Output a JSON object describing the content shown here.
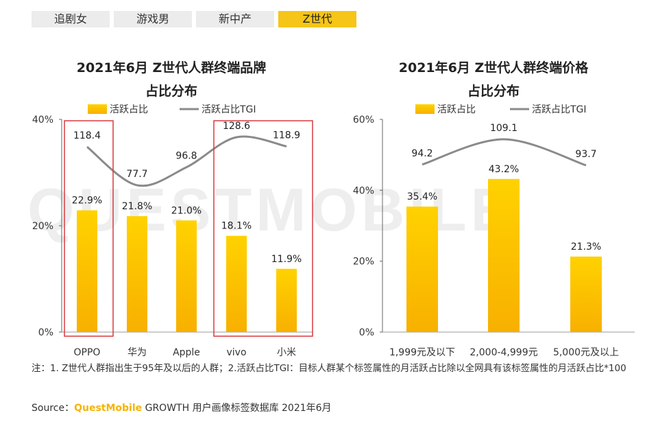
{
  "tabs": [
    {
      "label": "追剧女",
      "active": false
    },
    {
      "label": "游戏男",
      "active": false
    },
    {
      "label": "新中产",
      "active": false
    },
    {
      "label": "Z世代",
      "active": true
    }
  ],
  "watermark": "QUESTMOBILE",
  "colors": {
    "bar_top": "#ffd200",
    "bar_bottom": "#f8b000",
    "line": "#8a8a8a",
    "highlight": "#d9393e",
    "tab_active": "#f5c518"
  },
  "chart_data": [
    {
      "type": "bar",
      "title_line1": "2021年6月 Z世代人群终端品牌",
      "title_line2": "占比分布",
      "legend": {
        "bar": "活跃占比",
        "line": "活跃占比TGI"
      },
      "categories": [
        "OPPO",
        "华为",
        "Apple",
        "vivo",
        "小米"
      ],
      "values": [
        22.9,
        21.8,
        21.0,
        18.1,
        11.9
      ],
      "value_labels": [
        "22.9%",
        "21.8%",
        "21.0%",
        "18.1%",
        "11.9%"
      ],
      "tgi": [
        118.4,
        77.7,
        96.8,
        128.6,
        118.9
      ],
      "tgi_labels": [
        "118.4",
        "77.7",
        "96.8",
        "128.6",
        "118.9"
      ],
      "ylim": [
        0,
        40
      ],
      "yticks": [
        "0%",
        "20%",
        "40%"
      ],
      "highlight_groups": [
        [
          0
        ],
        [
          3,
          4
        ]
      ]
    },
    {
      "type": "bar",
      "title_line1": "2021年6月 Z世代人群终端价格",
      "title_line2": "占比分布",
      "legend": {
        "bar": "活跃占比",
        "line": "活跃占比TGI"
      },
      "categories": [
        "1,999元及以下",
        "2,000-4,999元",
        "5,000元及以上"
      ],
      "values": [
        35.4,
        43.2,
        21.3
      ],
      "value_labels": [
        "35.4%",
        "43.2%",
        "21.3%"
      ],
      "tgi": [
        94.2,
        109.1,
        93.7
      ],
      "tgi_labels": [
        "94.2",
        "109.1",
        "93.7"
      ],
      "ylim": [
        0,
        60
      ],
      "yticks": [
        "0%",
        "20%",
        "40%",
        "60%"
      ],
      "highlight_groups": []
    }
  ],
  "note": "注：1. Z世代人群指出生于95年及以后的人群；2.活跃占比TGI：目标人群某个标签属性的月活跃占比除以全网具有该标签属性的月活跃占比*100",
  "source": {
    "prefix": "Source：",
    "brand": "QuestMobile",
    "rest": " GROWTH 用户画像标签数据库 2021年6月"
  }
}
